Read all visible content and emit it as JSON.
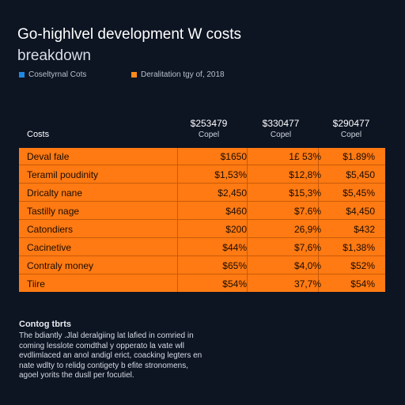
{
  "title": {
    "line1": "Go-highlvel development W costs",
    "line2": "breakdown"
  },
  "legend": [
    {
      "label": "Coseltyrnal Cots",
      "color": "#1e88e5"
    },
    {
      "label": "Deralitation tgy of, 2018",
      "color": "#ff8a1a"
    }
  ],
  "table": {
    "row_header": "Costs",
    "columns": [
      {
        "amount": "$253479",
        "sub": "Copel"
      },
      {
        "amount": "$330477",
        "sub": "Copel"
      },
      {
        "amount": "$290477",
        "sub": "Copel"
      }
    ],
    "rows": [
      {
        "name": "Deval fale",
        "v1": "$1650",
        "v2": "1£ 53%",
        "v3": "$1.89%"
      },
      {
        "name": "Teramil poudinity",
        "v1": "$1,53%",
        "v2": "$12,8%",
        "v3": "$5,450"
      },
      {
        "name": "Dricalty nane",
        "v1": "$2,450",
        "v2": "$15,3%",
        "v3": "$5,45%"
      },
      {
        "name": "Tastilly nage",
        "v1": "$460",
        "v2": "$7.6%",
        "v3": "$4,450"
      },
      {
        "name": "Catondiers",
        "v1": "$200",
        "v2": "26,9%",
        "v3": "$432"
      },
      {
        "name": "Cacinetive",
        "v1": "$44%",
        "v2": "$7,6%",
        "v3": "$1,38%"
      },
      {
        "name": "Contraly money",
        "v1": "$65%",
        "v2": "$4,0%",
        "v3": "$52%"
      },
      {
        "name": "Tiire",
        "v1": "$54%",
        "v2": "37,7%",
        "v3": "$54%"
      }
    ]
  },
  "notes": {
    "title": "Contog tbrts",
    "lines": [
      "The bdiantly .Jlal deralgiing lat lafied in comried in",
      "coming lesslote comdthal y opperato la vate wll",
      "evdlimlaced an anol andigl erict, coacking legters en",
      "nate wdlty to relidg contigety b efite stronomens,",
      "agoel yorits the dusll per focutiel."
    ]
  }
}
